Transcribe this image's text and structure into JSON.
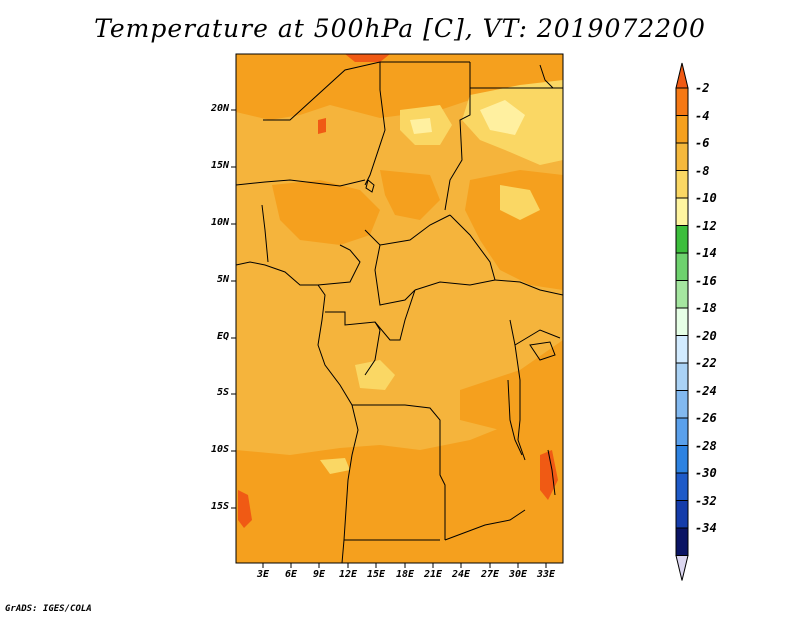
{
  "title": "Temperature at 500hPa [C], VT: 2019072200",
  "credit": "GrADS: IGES/COLA",
  "lat_ticks": [
    "20N",
    "15N",
    "10N",
    "5N",
    "EQ",
    "5S",
    "10S",
    "15S"
  ],
  "lon_ticks": [
    "3E",
    "6E",
    "9E",
    "12E",
    "15E",
    "18E",
    "21E",
    "24E",
    "27E",
    "30E",
    "33E"
  ],
  "colorbar": {
    "labels": [
      "-2",
      "-4",
      "-6",
      "-8",
      "-10",
      "-12",
      "-14",
      "-16",
      "-18",
      "-20",
      "-22",
      "-24",
      "-26",
      "-28",
      "-30",
      "-32",
      "-34"
    ],
    "colors": [
      "#f05a14",
      "#f57814",
      "#f5a01e",
      "#f5b83c",
      "#fad764",
      "#fff5a0",
      "#3cbe3c",
      "#6ed26e",
      "#a5e6a0",
      "#e6ffe6",
      "#d2ebff",
      "#aad2f5",
      "#82b9f0",
      "#5aa0eb",
      "#2d82e1",
      "#1e5ac8",
      "#143caa",
      "#0a1464",
      "#dcd7f0"
    ]
  },
  "field_colors": {
    "base": "#f5b43c",
    "warm": "#f5a01e",
    "cool": "#fad764",
    "hot": "#f05a14",
    "very_cool": "#fff0a0"
  }
}
